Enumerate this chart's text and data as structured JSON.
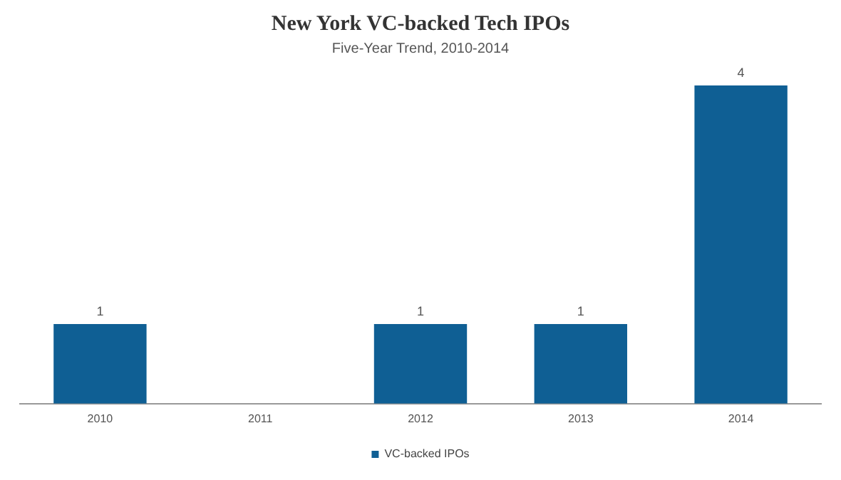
{
  "chart_data": {
    "type": "bar",
    "title": "New York VC-backed Tech IPOs",
    "subtitle": "Five-Year Trend, 2010-2014",
    "categories": [
      "2010",
      "2011",
      "2012",
      "2013",
      "2014"
    ],
    "series": [
      {
        "name": "VC-backed IPOs",
        "color": "#0f5f94",
        "values": [
          1,
          0,
          1,
          1,
          4
        ],
        "value_labels": [
          "1",
          null,
          "1",
          "1",
          "4"
        ]
      }
    ],
    "legend": "bottom",
    "grid": false
  }
}
